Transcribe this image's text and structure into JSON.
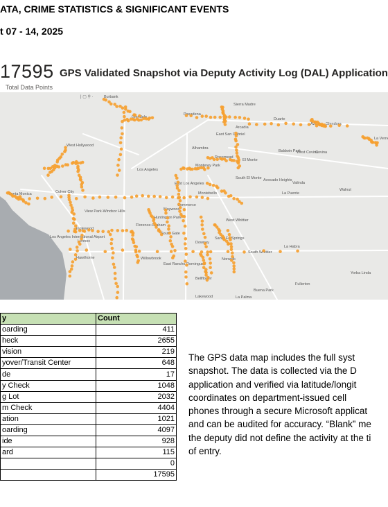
{
  "header": {
    "line1": "ATA, CRIME STATISTICS & SIGNIFICANT EVENTS",
    "line2": "t 07 - 14, 2025"
  },
  "summary": {
    "total": "17595",
    "total_label": "Total Data Points",
    "map_title": "GPS Validated Snapshot via Deputy Activity Log (DAL) Application"
  },
  "map": {
    "places": [
      {
        "name": "Burbank"
      },
      {
        "name": "Glendale"
      },
      {
        "name": "Pasadena"
      },
      {
        "name": "Sierra Madre"
      },
      {
        "name": "Arcadia"
      },
      {
        "name": "Duarte"
      },
      {
        "name": "Azusa"
      },
      {
        "name": "Glendora"
      },
      {
        "name": "La Verne"
      },
      {
        "name": "East San Gabriel"
      },
      {
        "name": "Alhambra"
      },
      {
        "name": "West Hollywood"
      },
      {
        "name": "Rosemead"
      },
      {
        "name": "El Monte"
      },
      {
        "name": "Baldwin Park"
      },
      {
        "name": "West Covina"
      },
      {
        "name": "Covina"
      },
      {
        "name": "Los Angeles"
      },
      {
        "name": "Monterey Park"
      },
      {
        "name": "South El Monte"
      },
      {
        "name": "Avocado Heights"
      },
      {
        "name": "Valinda"
      },
      {
        "name": "Santa Monica"
      },
      {
        "name": "Culver City"
      },
      {
        "name": "East Los Angeles"
      },
      {
        "name": "Montebello"
      },
      {
        "name": "Walnut"
      },
      {
        "name": "La Puente"
      },
      {
        "name": "View Park-Windsor Hills"
      },
      {
        "name": "Maywood"
      },
      {
        "name": "Commerce"
      },
      {
        "name": "Huntington Park"
      },
      {
        "name": "Los Angeles International Airport"
      },
      {
        "name": "Inglewood"
      },
      {
        "name": "Florence-Graham"
      },
      {
        "name": "West Whittier"
      },
      {
        "name": "South Gate"
      },
      {
        "name": "Lennox"
      },
      {
        "name": "Hawthorne"
      },
      {
        "name": "Downey"
      },
      {
        "name": "Santa Fe Springs"
      },
      {
        "name": "La Habra"
      },
      {
        "name": "South Whittier"
      },
      {
        "name": "Willowbrook"
      },
      {
        "name": "Norwalk"
      },
      {
        "name": "East Rancho Dominguez"
      },
      {
        "name": "Bellflower"
      },
      {
        "name": "Yorba Linda"
      },
      {
        "name": "Fullerton"
      },
      {
        "name": "Buena Park"
      },
      {
        "name": "Lakewood"
      },
      {
        "name": "La Palma"
      }
    ]
  },
  "table": {
    "headers": [
      "y",
      "Count"
    ],
    "rows": [
      {
        "label": "oarding",
        "count": "411"
      },
      {
        "label": "heck",
        "count": "2655"
      },
      {
        "label": "vision",
        "count": "219"
      },
      {
        "label": "yover/Transit Center",
        "count": "648"
      },
      {
        "label": "de",
        "count": "17"
      },
      {
        "label": "y Check",
        "count": "1048"
      },
      {
        "label": "g Lot",
        "count": "2032"
      },
      {
        "label": "m Check",
        "count": "4404"
      },
      {
        "label": "ation",
        "count": "1021"
      },
      {
        "label": "oarding",
        "count": "4097"
      },
      {
        "label": "ide",
        "count": "928"
      },
      {
        "label": "ard",
        "count": "115"
      },
      {
        "label": "",
        "count": "0"
      },
      {
        "label": "",
        "count": "17595"
      }
    ]
  },
  "paragraph": {
    "lines": [
      "The GPS data map includes the full syst",
      "snapshot. The data is collected via the D",
      "application and verified via latitude/longit",
      "coordinates on department-issued cell",
      "phones through a secure Microsoft applicat",
      "and can be audited for accuracy. “Blank” me",
      "the deputy did not define the activity at the ti",
      "of entry."
    ]
  },
  "colors": {
    "dot": "#f5a030",
    "map_bg": "#e9e9e7",
    "ocean": "#a8acb0",
    "header_fill": "#c6e0b4"
  }
}
